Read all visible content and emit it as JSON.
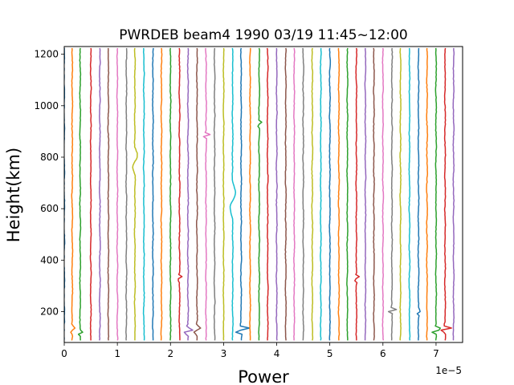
{
  "chart_data": {
    "type": "line",
    "title": "PWRDEB beam4 1990 03/19 11:45~12:00",
    "xlabel": "Power",
    "ylabel": "Height(km)",
    "x_offset_label": "1e−5",
    "xlim": [
      0,
      7.5
    ],
    "ylim": [
      80,
      1230
    ],
    "x_ticks": [
      "0",
      "1",
      "2",
      "3",
      "4",
      "5",
      "6",
      "7"
    ],
    "y_ticks": [
      "200",
      "400",
      "600",
      "800",
      "1000",
      "1200"
    ],
    "x_tick_values": [
      0,
      1,
      2,
      3,
      4,
      5,
      6,
      7
    ],
    "y_tick_values": [
      200,
      400,
      600,
      800,
      1000,
      1200
    ],
    "grid": false,
    "legend": "none",
    "height_range_km": [
      88,
      1230
    ],
    "profile_spacing": 0.1667,
    "colors": [
      "#1f77b4",
      "#ff7f0e",
      "#2ca02c",
      "#d62728",
      "#9467bd",
      "#8c564b",
      "#e377c2",
      "#7f7f7f",
      "#bcbd22",
      "#17becf"
    ],
    "series": [
      {
        "base": 0.0
      },
      {
        "base": 0.15
      },
      {
        "base": 0.3
      },
      {
        "base": 0.5
      },
      {
        "base": 0.67
      },
      {
        "base": 0.83
      },
      {
        "base": 1.0
      },
      {
        "base": 1.17
      },
      {
        "base": 1.33
      },
      {
        "base": 1.5
      },
      {
        "base": 1.67
      },
      {
        "base": 1.83
      },
      {
        "base": 2.0
      },
      {
        "base": 2.17
      },
      {
        "base": 2.33
      },
      {
        "base": 2.5
      },
      {
        "base": 2.67
      },
      {
        "base": 2.83
      },
      {
        "base": 3.0
      },
      {
        "base": 3.17
      },
      {
        "base": 3.33
      },
      {
        "base": 3.5
      },
      {
        "base": 3.67
      },
      {
        "base": 3.83
      },
      {
        "base": 4.0
      },
      {
        "base": 4.17
      },
      {
        "base": 4.33
      },
      {
        "base": 4.5
      },
      {
        "base": 4.67
      },
      {
        "base": 4.83
      },
      {
        "base": 5.0
      },
      {
        "base": 5.17
      },
      {
        "base": 5.33
      },
      {
        "base": 5.5
      },
      {
        "base": 5.67
      },
      {
        "base": 5.83
      },
      {
        "base": 6.0
      },
      {
        "base": 6.17
      },
      {
        "base": 6.33
      },
      {
        "base": 6.5
      },
      {
        "base": 6.67
      },
      {
        "base": 6.83
      },
      {
        "base": 7.0
      },
      {
        "base": 7.17
      },
      {
        "base": 7.33
      }
    ],
    "features": [
      {
        "series": 1,
        "height": 130,
        "width": 18,
        "amp": 0.05
      },
      {
        "series": 2,
        "height": 118,
        "width": 12,
        "amp": 0.06
      },
      {
        "series": 8,
        "height": 790,
        "width": 55,
        "amp": 0.06
      },
      {
        "series": 13,
        "height": 330,
        "width": 10,
        "amp": 0.1
      },
      {
        "series": 14,
        "height": 125,
        "width": 14,
        "amp": 0.12
      },
      {
        "series": 15,
        "height": 130,
        "width": 18,
        "amp": 0.08
      },
      {
        "series": 16,
        "height": 885,
        "width": 10,
        "amp": 0.08
      },
      {
        "series": 18,
        "height": 905,
        "width": 8,
        "amp": 0.07
      },
      {
        "series": 19,
        "height": 640,
        "width": 70,
        "amp": 0.07
      },
      {
        "series": 20,
        "height": 130,
        "width": 14,
        "amp": 0.18
      },
      {
        "series": 22,
        "height": 930,
        "width": 12,
        "amp": 0.06
      },
      {
        "series": 33,
        "height": 330,
        "width": 12,
        "amp": 0.07
      },
      {
        "series": 37,
        "height": 205,
        "width": 10,
        "amp": 0.1
      },
      {
        "series": 40,
        "height": 200,
        "width": 10,
        "amp": 0.06
      },
      {
        "series": 42,
        "height": 128,
        "width": 14,
        "amp": 0.12
      },
      {
        "series": 43,
        "height": 132,
        "width": 12,
        "amp": 0.14
      }
    ]
  }
}
